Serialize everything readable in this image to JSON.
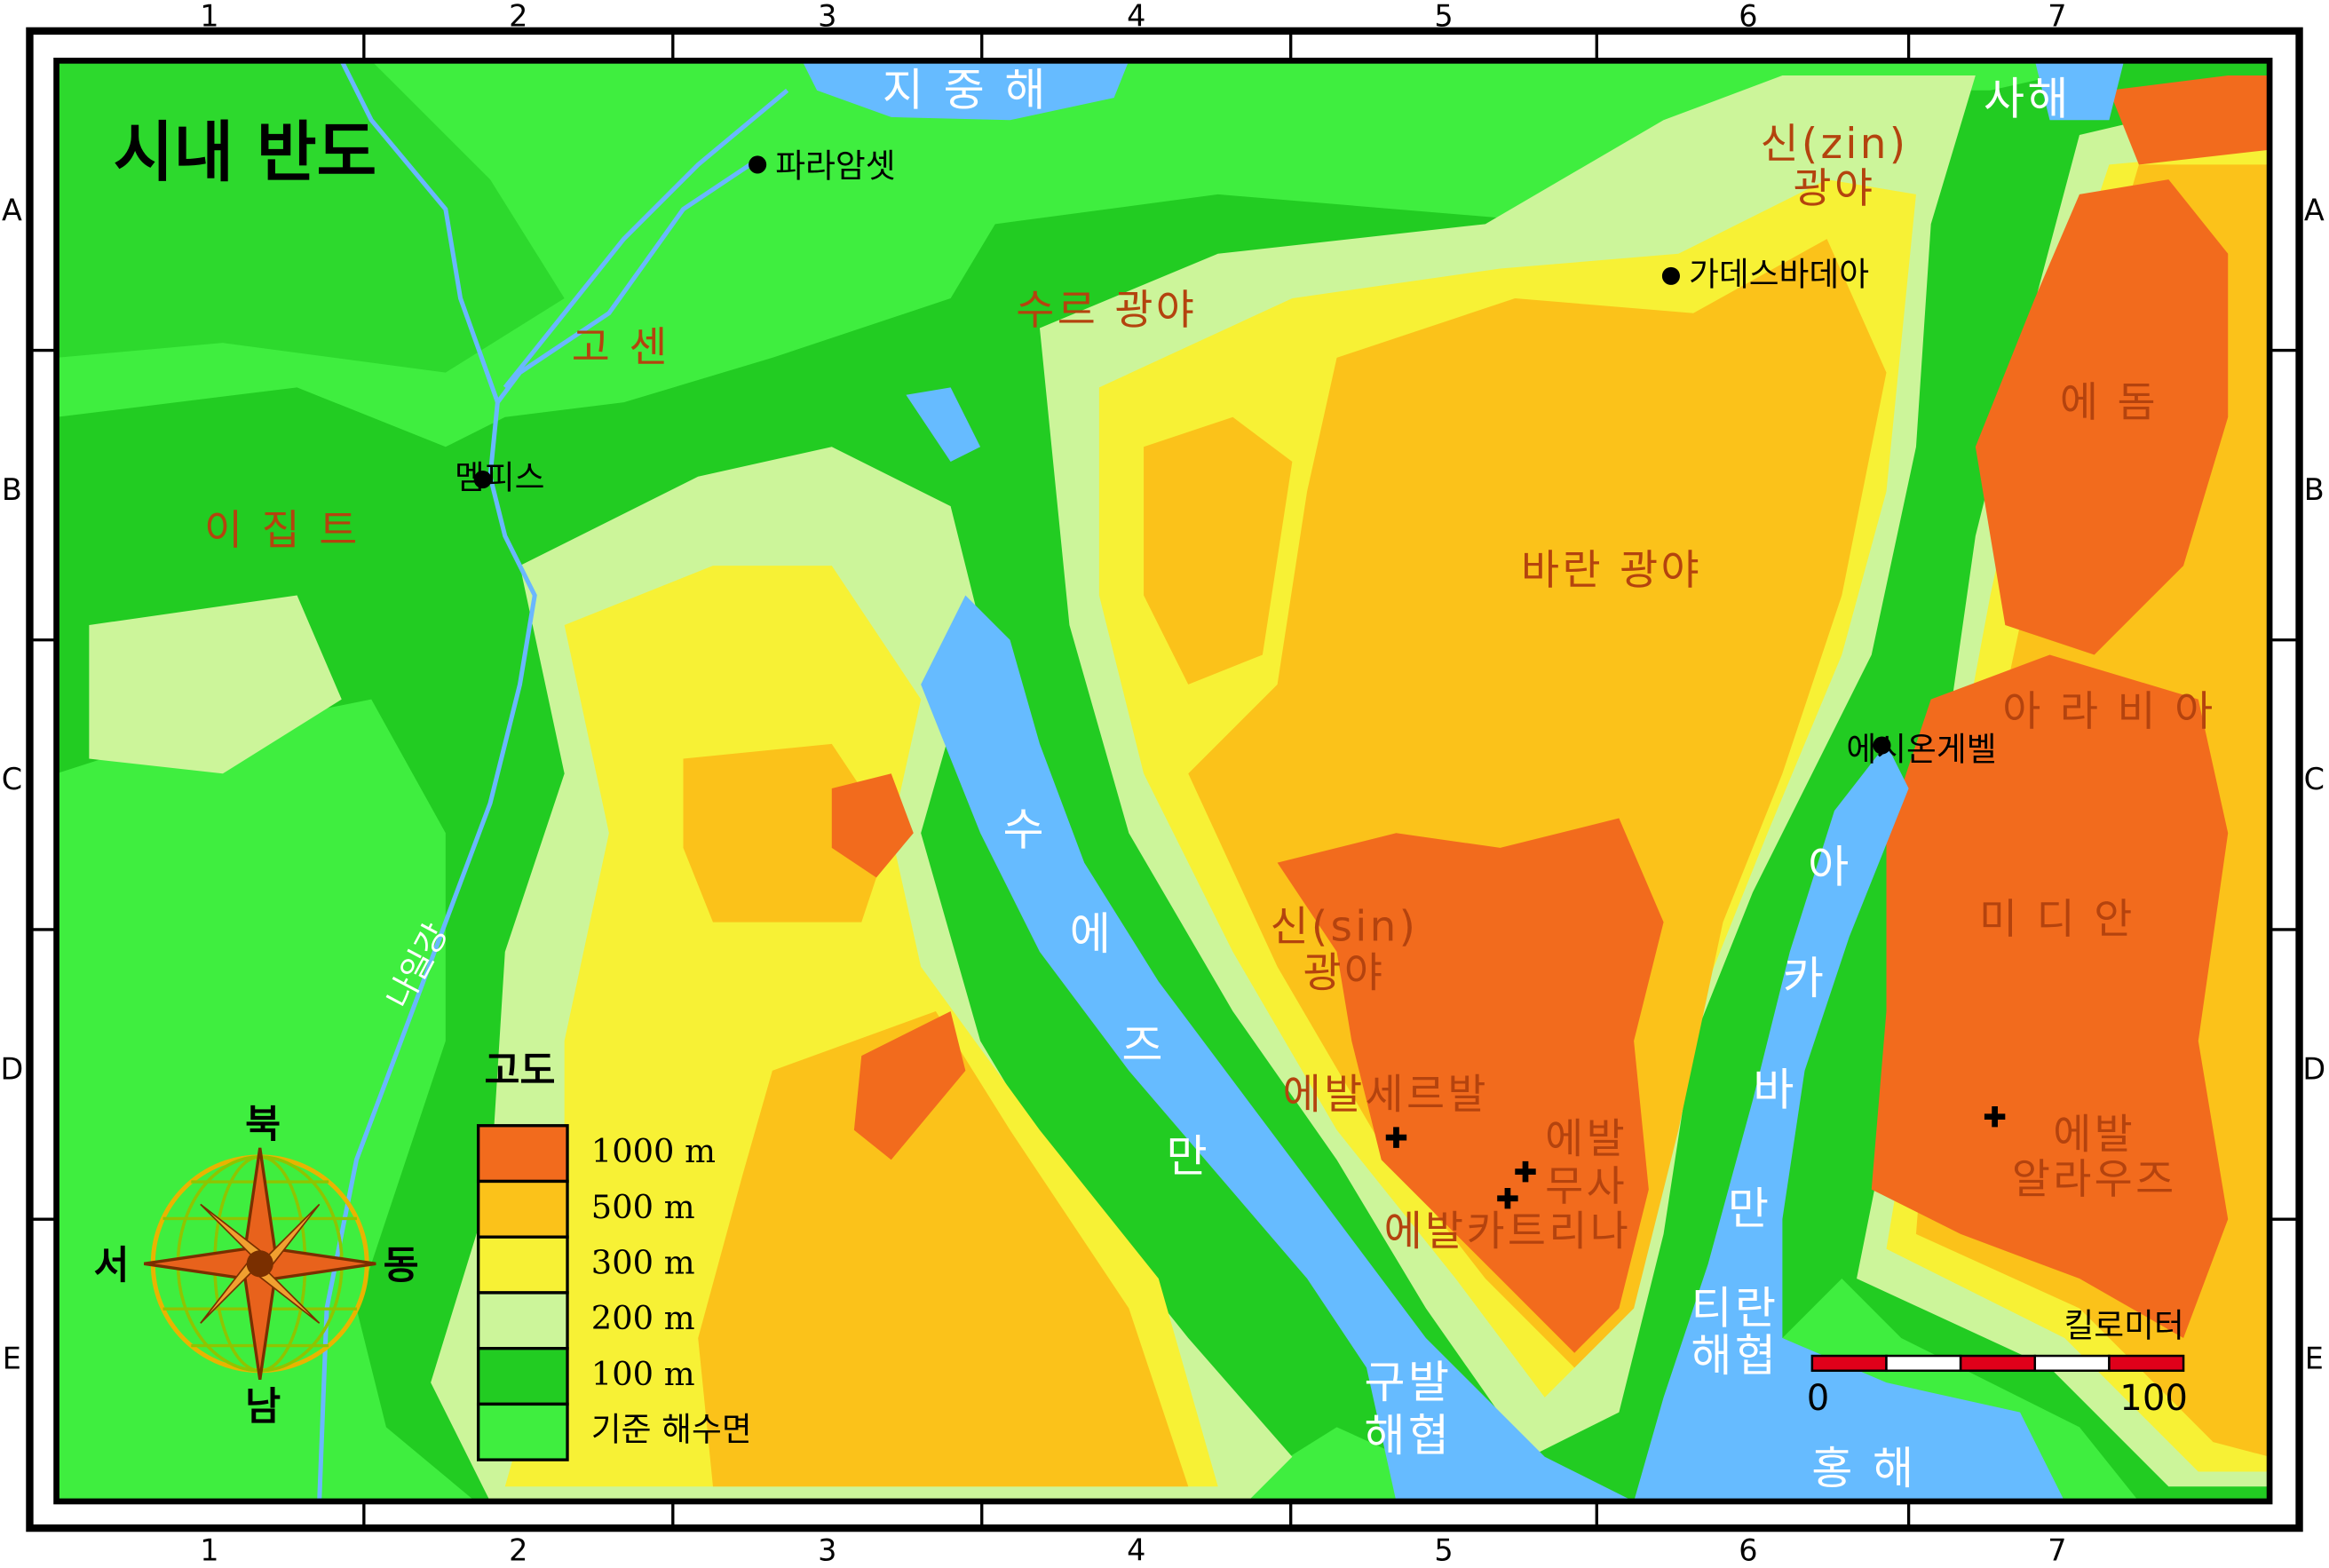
{
  "title": "시내 반도",
  "grid": {
    "columns": [
      "1",
      "2",
      "3",
      "4",
      "5",
      "6",
      "7"
    ],
    "rows": [
      "A",
      "B",
      "C",
      "D",
      "E"
    ]
  },
  "seas": [
    {
      "lines": [
        "지 중 해"
      ]
    },
    {
      "lines": [
        "사해"
      ]
    },
    {
      "lines": [
        "티란",
        "해협"
      ]
    },
    {
      "lines": [
        "구발",
        "해협"
      ]
    },
    {
      "lines": [
        "홍 해"
      ]
    }
  ],
  "gulfs": [
    {
      "chars": [
        "수",
        "에",
        "즈",
        "만"
      ]
    },
    {
      "chars": [
        "아",
        "카",
        "바",
        "만"
      ]
    }
  ],
  "river": "나일강",
  "regions": [
    {
      "lines": [
        "수르 광야"
      ]
    },
    {
      "lines": [
        "고 센"
      ]
    },
    {
      "lines": [
        "이 집 트"
      ]
    },
    {
      "lines": [
        "신(zin)",
        "광야"
      ]
    },
    {
      "lines": [
        "에 돔"
      ]
    },
    {
      "lines": [
        "바란 광야"
      ]
    },
    {
      "lines": [
        "아 라 비 아"
      ]
    },
    {
      "lines": [
        "미 디 안"
      ]
    },
    {
      "lines": [
        "신(sin)",
        "광야"
      ]
    }
  ],
  "cities": [
    "파라암셋",
    "멤피스",
    "가데스바데아",
    "에시온게벨"
  ],
  "mountains": [
    {
      "lines": [
        "에발세르발"
      ]
    },
    {
      "lines": [
        "에발",
        "무사"
      ]
    },
    {
      "lines": [
        "에발카트리나"
      ]
    },
    {
      "lines": [
        "에발",
        "알라우즈"
      ]
    }
  ],
  "legend": {
    "title": "고도",
    "items": [
      "1000 m",
      "500 m",
      "300 m",
      "200 m",
      "100 m",
      "기준 해수면"
    ]
  },
  "compass": {
    "north": "북",
    "south": "남",
    "west": "서",
    "east": "동"
  },
  "scale": {
    "title": "킬로미터",
    "labels": [
      "0",
      "100"
    ]
  }
}
